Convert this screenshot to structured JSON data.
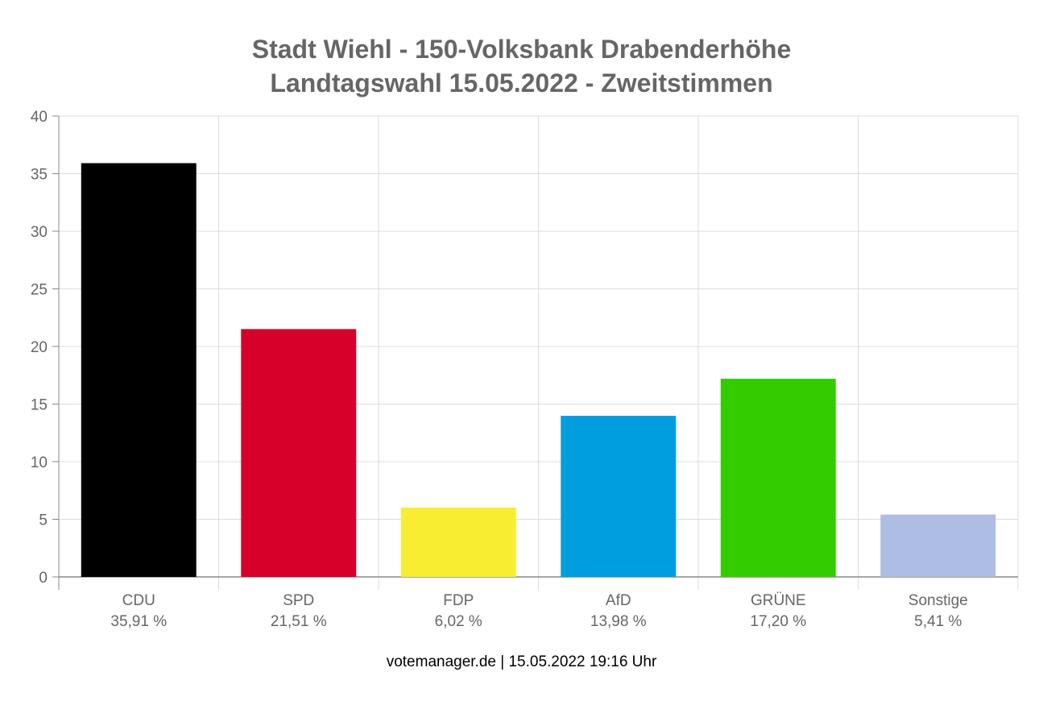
{
  "chart_data": {
    "type": "bar",
    "title": "Stadt Wiehl - 150-Volksbank Drabenderhöhe",
    "subtitle": "Landtagswahl 15.05.2022  - Zweitstimmen",
    "categories": [
      "CDU",
      "SPD",
      "FDP",
      "AfD",
      "GRÜNE",
      "Sonstige"
    ],
    "values": [
      35.91,
      21.51,
      6.02,
      13.98,
      17.2,
      5.41
    ],
    "value_labels": [
      "35,91 %",
      "21,51 %",
      "6,02 %",
      "13,98 %",
      "17,20 %",
      "5,41 %"
    ],
    "colors": [
      "#000000",
      "#d7002a",
      "#f9ed32",
      "#009ddf",
      "#33cc00",
      "#adbde3"
    ],
    "ylim": [
      0,
      40
    ],
    "yticks": [
      0,
      5,
      10,
      15,
      20,
      25,
      30,
      35,
      40
    ],
    "grid": true
  },
  "footer": "votemanager.de | 15.05.2022 19:16 Uhr"
}
